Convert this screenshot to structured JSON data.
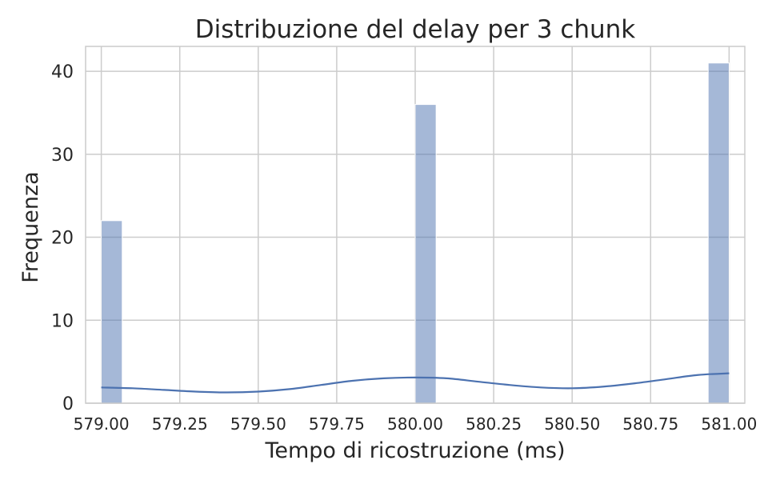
{
  "chart_data": {
    "type": "bar",
    "title": "Distribuzione del delay per 3 chunk",
    "xlabel": "Tempo di ricostruzione (ms)",
    "ylabel": "Frequenza",
    "xlim": [
      578.95,
      581.05
    ],
    "ylim": [
      0,
      43
    ],
    "grid": true,
    "legend": "none",
    "color": "#4c72b0",
    "x_ticks": [
      "579.00",
      "579.25",
      "579.50",
      "579.75",
      "580.00",
      "580.25",
      "580.50",
      "580.75",
      "581.00"
    ],
    "x_tick_values": [
      579.0,
      579.25,
      579.5,
      579.75,
      580.0,
      580.25,
      580.5,
      580.75,
      581.0
    ],
    "y_ticks": [
      "0",
      "10",
      "20",
      "30",
      "40"
    ],
    "y_tick_values": [
      0,
      10,
      20,
      30,
      40
    ],
    "bars": [
      {
        "x0": 579.0,
        "x1": 579.0667,
        "value": 22
      },
      {
        "x0": 580.0,
        "x1": 580.0667,
        "value": 36
      },
      {
        "x0": 580.9333,
        "x1": 581.0,
        "value": 41
      }
    ],
    "kde_line": {
      "x": [
        579.0,
        579.1,
        579.2,
        579.3,
        579.4,
        579.5,
        579.6,
        579.7,
        579.8,
        579.9,
        580.0,
        580.1,
        580.2,
        580.3,
        580.4,
        580.5,
        580.6,
        580.7,
        580.8,
        580.9,
        581.0
      ],
      "y": [
        1.9,
        1.8,
        1.6,
        1.4,
        1.3,
        1.4,
        1.7,
        2.2,
        2.7,
        3.0,
        3.1,
        3.0,
        2.6,
        2.2,
        1.9,
        1.8,
        2.0,
        2.4,
        2.9,
        3.4,
        3.6
      ]
    }
  }
}
